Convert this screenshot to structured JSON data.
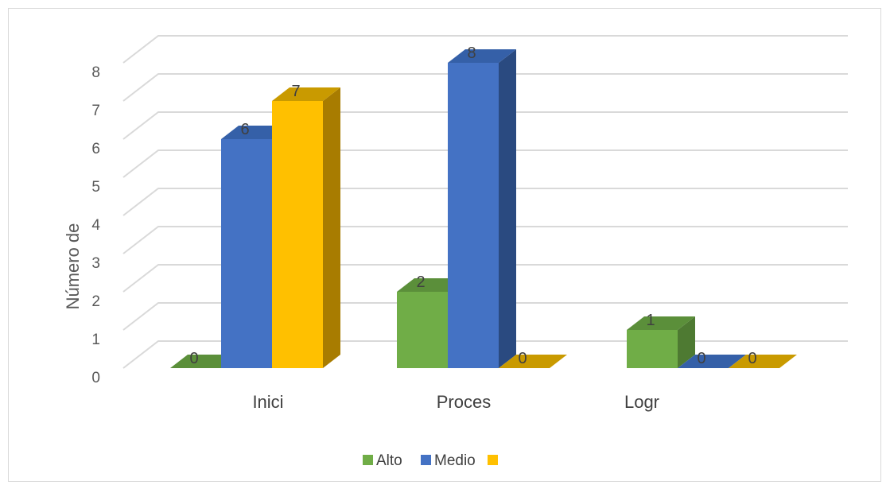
{
  "chart_data": {
    "type": "bar",
    "categories": [
      "Inici",
      "Proces",
      "Logr"
    ],
    "series": [
      {
        "name": "Alto",
        "values": [
          0,
          2,
          1
        ]
      },
      {
        "name": "Medio",
        "values": [
          6,
          8,
          0
        ]
      },
      {
        "name": "",
        "values": [
          7,
          0,
          0
        ]
      }
    ],
    "xlabel": "",
    "ylabel": "Número de",
    "ylim": [
      0,
      8
    ],
    "yticks": [
      "0",
      "1",
      "2",
      "3",
      "4",
      "5",
      "6",
      "7",
      "8"
    ],
    "grid": true,
    "legend": "bottom",
    "colors": {
      "Alto": {
        "front": "#70ad47",
        "side": "#4e7a32",
        "top": "#5b8f3a"
      },
      "Medio": {
        "front": "#4472c4",
        "side": "#2a4a80",
        "top": "#3560a8"
      },
      "third": {
        "front": "#ffc000",
        "side": "#a87c00",
        "top": "#c99a00"
      },
      "grid": "#d9d9d9",
      "floor": "#d9d9d9"
    }
  }
}
